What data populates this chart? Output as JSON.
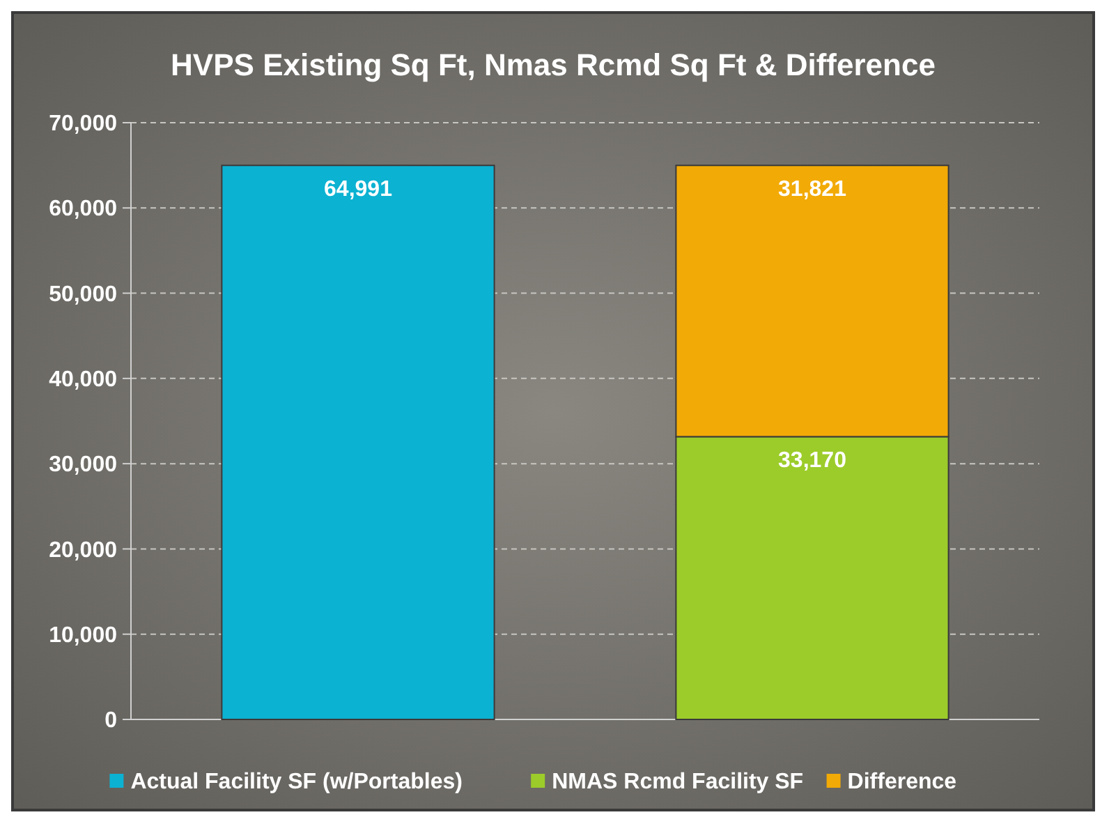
{
  "chart_data": {
    "type": "bar",
    "title": "HVPS Existing Sq Ft, Nmas Rcmd Sq Ft & Difference",
    "categories": [
      null,
      null
    ],
    "stacked": true,
    "series": [
      {
        "name": "Actual Facility SF (w/Portables)",
        "color": "#0cb2d2",
        "values": [
          64991,
          null
        ],
        "value_labels": [
          "64,991",
          null
        ]
      },
      {
        "name": "NMAS Rcmd Facility SF",
        "color": "#9ccc2a",
        "values": [
          null,
          33170
        ],
        "value_labels": [
          null,
          "33,170"
        ]
      },
      {
        "name": "Difference",
        "color": "#f2aa06",
        "values": [
          null,
          31821
        ],
        "value_labels": [
          null,
          "31,821"
        ]
      }
    ],
    "ylim": [
      0,
      70000
    ],
    "yticks": [
      {
        "value": 0,
        "label": "0"
      },
      {
        "value": 10000,
        "label": "10,000"
      },
      {
        "value": 20000,
        "label": "20,000"
      },
      {
        "value": 30000,
        "label": "30,000"
      },
      {
        "value": 40000,
        "label": "40,000"
      },
      {
        "value": 50000,
        "label": "50,000"
      },
      {
        "value": 60000,
        "label": "60,000"
      },
      {
        "value": 70000,
        "label": "70,000"
      }
    ],
    "grid": "y",
    "legend": "bottom"
  }
}
